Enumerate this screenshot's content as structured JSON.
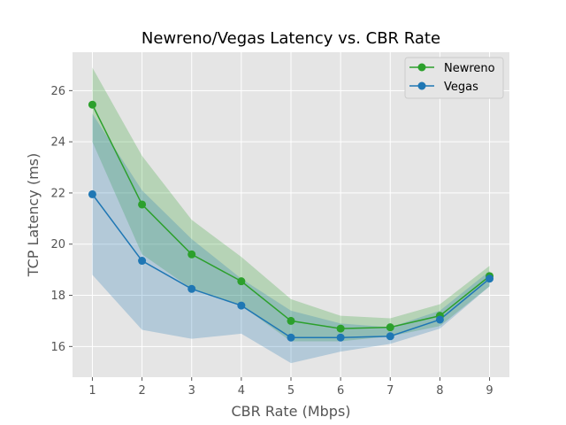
{
  "chart_data": {
    "type": "line",
    "title": "Newreno/Vegas Latency vs. CBR Rate",
    "xlabel": "CBR Rate (Mbps)",
    "ylabel": "TCP Latency (ms)",
    "x": [
      1,
      2,
      3,
      4,
      5,
      6,
      7,
      8,
      9
    ],
    "xlim": [
      0.6,
      9.4
    ],
    "ylim": [
      14.8,
      27.5
    ],
    "xticks": [
      1,
      2,
      3,
      4,
      5,
      6,
      7,
      8,
      9
    ],
    "yticks": [
      16,
      18,
      20,
      22,
      24,
      26
    ],
    "grid": true,
    "legend_position": "top-right",
    "background": "#e5e5e5",
    "series": [
      {
        "name": "Newreno",
        "color": "#2ca02c",
        "band_color": "#2ca02c",
        "values": [
          25.45,
          21.55,
          19.6,
          18.55,
          17.0,
          16.7,
          16.75,
          17.2,
          18.75
        ],
        "lower": [
          24.0,
          19.6,
          18.25,
          17.6,
          16.2,
          16.2,
          16.4,
          16.8,
          18.35
        ],
        "upper": [
          26.9,
          23.45,
          20.95,
          19.5,
          17.85,
          17.2,
          17.1,
          17.65,
          19.15
        ]
      },
      {
        "name": "Vegas",
        "color": "#1f77b4",
        "band_color": "#1f77b4",
        "values": [
          21.95,
          19.35,
          18.25,
          17.6,
          16.35,
          16.35,
          16.4,
          17.05,
          18.65
        ],
        "lower": [
          18.8,
          16.65,
          16.3,
          16.5,
          15.35,
          15.8,
          16.1,
          16.7,
          18.35
        ],
        "upper": [
          25.1,
          22.1,
          20.2,
          18.65,
          17.4,
          16.9,
          16.75,
          17.4,
          18.95
        ]
      }
    ]
  }
}
